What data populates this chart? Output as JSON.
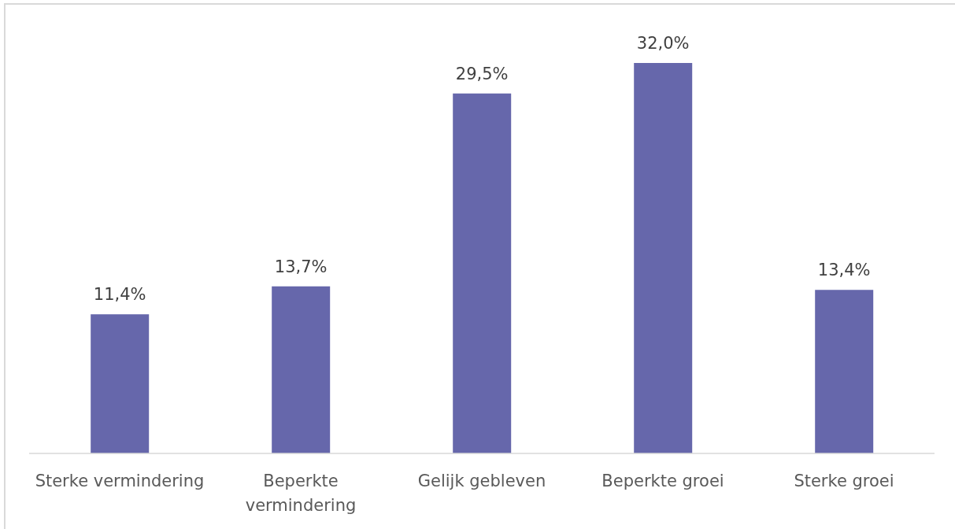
{
  "chart_data": {
    "type": "bar",
    "categories": [
      "Sterke vermindering",
      "Beperkte vermindering",
      "Gelijk gebleven",
      "Beperkte groei",
      "Sterke groei"
    ],
    "values": [
      11.4,
      13.7,
      29.5,
      32.0,
      13.4
    ],
    "color": "#6667ab",
    "value_labels": [
      "11,4%",
      "13,7%",
      "29,5%",
      "32,0%",
      "13,4%"
    ]
  }
}
